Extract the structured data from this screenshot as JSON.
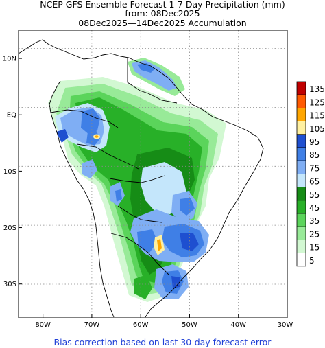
{
  "title": {
    "line1": "NCEP GFS Ensemble Forecast 1-7 Day Precipitation (mm)",
    "line2": "from: 08Dec2025",
    "line3": "08Dec2025—14Dec2025 Accumulation"
  },
  "footer": "Bias correction based on last 30-day forecast error",
  "map": {
    "region": "South America",
    "lon_range": [
      -85,
      -30
    ],
    "lat_range": [
      -36,
      15
    ],
    "lat_ticks": [
      "10N",
      "EQ",
      "10S",
      "20S",
      "30S"
    ],
    "lon_ticks": [
      "80W",
      "70W",
      "60W",
      "50W",
      "40W",
      "30W"
    ],
    "grid": "dotted"
  },
  "legend": {
    "units": "mm",
    "levels": [
      {
        "label": "135",
        "color": "#c00000"
      },
      {
        "label": "125",
        "color": "#ff5a00"
      },
      {
        "label": "115",
        "color": "#ffa600"
      },
      {
        "label": "105",
        "color": "#fff0a0"
      },
      {
        "label": "95",
        "color": "#1e4fd0"
      },
      {
        "label": "85",
        "color": "#3f7fe6"
      },
      {
        "label": "75",
        "color": "#7faef4"
      },
      {
        "label": "65",
        "color": "#c4e6fb"
      },
      {
        "label": "55",
        "color": "#168c16"
      },
      {
        "label": "45",
        "color": "#28b028"
      },
      {
        "label": "35",
        "color": "#5bd45b"
      },
      {
        "label": "25",
        "color": "#98ea98"
      },
      {
        "label": "15",
        "color": "#d2f8d2"
      },
      {
        "label": "5",
        "color": "#ffffff"
      }
    ]
  }
}
